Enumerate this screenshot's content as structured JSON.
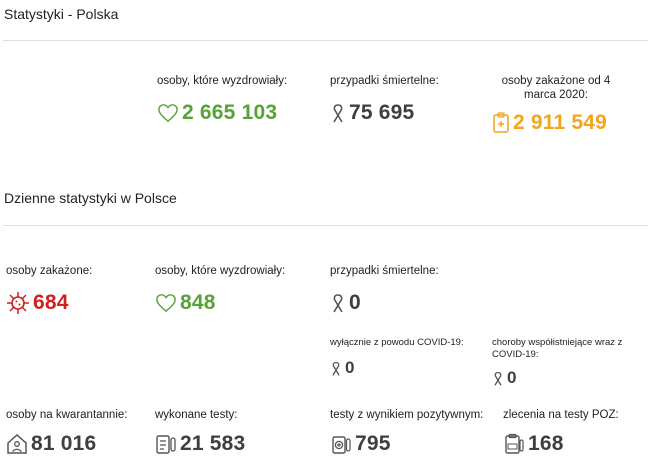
{
  "section1": {
    "title": "Statystyki - Polska",
    "recovered": {
      "label": "osoby, które wyzdrowiały:",
      "value": "2 665 103",
      "icon": "heart-icon",
      "color": "#57a338"
    },
    "deaths": {
      "label": "przypadki śmiertelne:",
      "value": "75 695",
      "icon": "ribbon-icon",
      "color": "#3f3f3f"
    },
    "infected": {
      "label": "osoby zakażone od 4 marca 2020:",
      "value": "2 911 549",
      "icon": "clipboard-cross-icon",
      "color": "#f4a51c"
    }
  },
  "section2": {
    "title": "Dzienne statystyki w Polsce",
    "infected": {
      "label": "osoby zakażone:",
      "value": "684",
      "icon": "virus-icon",
      "color": "#d0211f"
    },
    "recovered": {
      "label": "osoby, które wyzdrowiały:",
      "value": "848",
      "icon": "heart-icon",
      "color": "#57a338"
    },
    "deaths": {
      "label": "przypadki śmiertelne:",
      "value": "0",
      "icon": "ribbon-icon"
    },
    "deaths_covid_only": {
      "label": "wyłącznie z powodu COVID-19:",
      "value": "0",
      "icon": "ribbon-icon"
    },
    "deaths_comorbid": {
      "label": "choroby współistniejące wraz z COVID-19:",
      "value": "0",
      "icon": "ribbon-icon"
    },
    "quarantine": {
      "label": "osoby na kwarantannie:",
      "value": "81 016",
      "icon": "house-person-icon"
    },
    "tests_done": {
      "label": "wykonane testy:",
      "value": "21 583",
      "icon": "test-checklist-icon"
    },
    "tests_positive": {
      "label": "testy z wynikiem pozytywnym:",
      "value": "795",
      "icon": "test-plus-icon"
    },
    "poz_orders": {
      "label": "zlecenia na testy POZ:",
      "value": "168",
      "icon": "poz-clipboard-icon"
    }
  }
}
